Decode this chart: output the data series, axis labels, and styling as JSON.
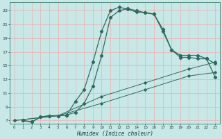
{
  "xlabel": "Humidex (Indice chaleur)",
  "bg_color": "#c8e8e8",
  "grid_color": "#e8b8b8",
  "line_color": "#2a6b5e",
  "xlim": [
    -0.5,
    23.5
  ],
  "ylim": [
    6.5,
    24.2
  ],
  "xticks": [
    0,
    1,
    2,
    3,
    4,
    5,
    6,
    7,
    8,
    9,
    10,
    11,
    12,
    13,
    14,
    15,
    16,
    17,
    18,
    19,
    20,
    21,
    22,
    23
  ],
  "yticks": [
    7,
    9,
    11,
    13,
    15,
    17,
    19,
    21,
    23
  ],
  "line1_x": [
    1,
    2,
    3,
    4,
    5,
    6,
    7,
    8,
    9,
    10,
    11,
    12,
    13,
    14,
    15,
    16,
    17,
    18,
    19,
    20,
    21,
    22,
    23
  ],
  "line1_y": [
    7.0,
    6.8,
    7.5,
    7.7,
    7.7,
    7.8,
    9.8,
    11.5,
    15.5,
    20.0,
    23.0,
    23.5,
    23.2,
    22.8,
    22.7,
    22.5,
    20.3,
    17.3,
    16.5,
    16.5,
    16.5,
    16.0,
    15.3
  ],
  "line2_x": [
    1,
    2,
    3,
    4,
    5,
    6,
    7,
    8,
    9,
    10,
    11,
    12,
    13,
    14,
    15,
    16,
    17,
    18,
    19,
    20,
    21,
    22,
    23
  ],
  "line2_y": [
    7.0,
    6.8,
    7.5,
    7.7,
    7.7,
    7.8,
    8.2,
    9.5,
    12.0,
    16.5,
    22.0,
    23.0,
    23.3,
    23.0,
    22.7,
    22.5,
    20.0,
    17.3,
    16.2,
    16.2,
    16.0,
    16.0,
    13.3
  ],
  "line3_x": [
    0,
    5,
    10,
    15,
    20,
    23
  ],
  "line3_y": [
    7.0,
    7.7,
    9.5,
    11.5,
    13.5,
    14.0
  ],
  "line4_x": [
    0,
    5,
    10,
    15,
    20,
    23
  ],
  "line4_y": [
    7.0,
    7.7,
    10.5,
    12.5,
    14.5,
    15.5
  ]
}
